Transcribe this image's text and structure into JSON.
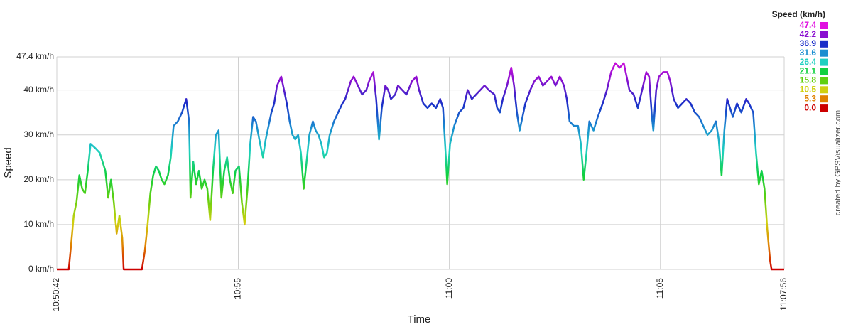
{
  "chart_data": {
    "type": "line",
    "x_label": "Time",
    "y_label": "Speed",
    "credit": "created by GPSVisualizer.com",
    "xlim": [
      "10:50:42",
      "11:07:56"
    ],
    "xticks": [
      "10:50:42",
      {
        "value": "10:55:00",
        "label": "10:55"
      },
      {
        "value": "11:00:00",
        "label": "11:00"
      },
      {
        "value": "11:05:00",
        "label": "11:05"
      },
      "11:07:56"
    ],
    "ylim": [
      0,
      47.4
    ],
    "yticks": [
      {
        "value": 0,
        "label": "0 km/h"
      },
      {
        "value": 10,
        "label": "10 km/h"
      },
      {
        "value": 20,
        "label": "20 km/h"
      },
      {
        "value": 30,
        "label": "30 km/h"
      },
      {
        "value": 40,
        "label": "40 km/h"
      },
      {
        "value": 47.4,
        "label": "47.4 km/h"
      }
    ],
    "grid": true,
    "legend": {
      "title": "Speed (km/h)",
      "items": [
        {
          "value": 47.4,
          "color": "#e010e0"
        },
        {
          "value": 42.2,
          "color": "#8a10d0"
        },
        {
          "value": 36.9,
          "color": "#1a2ec8"
        },
        {
          "value": 31.6,
          "color": "#1a8ed0"
        },
        {
          "value": 26.4,
          "color": "#1ed0c0"
        },
        {
          "value": 21.1,
          "color": "#10d040"
        },
        {
          "value": 15.8,
          "color": "#60d010"
        },
        {
          "value": 10.5,
          "color": "#d0d010"
        },
        {
          "value": 5.3,
          "color": "#e08000"
        },
        {
          "value": 0,
          "label": "0.0",
          "color": "#cc0000"
        }
      ]
    },
    "x": [
      "10:50:42",
      "10:50:59",
      "10:51:02",
      "10:51:06",
      "10:51:10",
      "10:51:14",
      "10:51:18",
      "10:51:22",
      "10:51:26",
      "10:51:30",
      "10:51:37",
      "10:51:43",
      "10:51:47",
      "10:51:51",
      "10:51:55",
      "10:51:59",
      "10:52:03",
      "10:52:07",
      "10:52:11",
      "10:52:15",
      "10:52:17",
      "10:52:43",
      "10:52:47",
      "10:52:51",
      "10:52:55",
      "10:52:59",
      "10:53:03",
      "10:53:07",
      "10:53:11",
      "10:53:15",
      "10:53:20",
      "10:53:24",
      "10:53:28",
      "10:53:34",
      "10:53:40",
      "10:53:46",
      "10:53:50",
      "10:53:52",
      "10:53:56",
      "10:54:00",
      "10:54:04",
      "10:54:08",
      "10:54:12",
      "10:54:16",
      "10:54:20",
      "10:54:24",
      "10:54:28",
      "10:54:32",
      "10:54:36",
      "10:54:40",
      "10:54:44",
      "10:54:48",
      "10:54:52",
      "10:54:56",
      "10:55:01",
      "10:55:05",
      "10:55:09",
      "10:55:13",
      "10:55:17",
      "10:55:21",
      "10:55:25",
      "10:55:31",
      "10:55:35",
      "10:55:39",
      "10:55:43",
      "10:55:47",
      "10:55:51",
      "10:55:55",
      "10:56:01",
      "10:56:05",
      "10:56:09",
      "10:56:13",
      "10:56:17",
      "10:56:21",
      "10:56:25",
      "10:56:29",
      "10:56:33",
      "10:56:37",
      "10:56:41",
      "10:56:46",
      "10:56:50",
      "10:56:54",
      "10:56:58",
      "10:57:02",
      "10:57:06",
      "10:57:10",
      "10:57:16",
      "10:57:22",
      "10:57:28",
      "10:57:32",
      "10:57:36",
      "10:57:40",
      "10:57:44",
      "10:57:50",
      "10:57:56",
      "10:58:02",
      "10:58:06",
      "10:58:12",
      "10:58:16",
      "10:58:20",
      "10:58:24",
      "10:58:29",
      "10:58:33",
      "10:58:37",
      "10:58:43",
      "10:58:47",
      "10:58:53",
      "10:58:59",
      "10:59:07",
      "10:59:13",
      "10:59:17",
      "10:59:23",
      "10:59:29",
      "10:59:35",
      "10:59:41",
      "10:59:47",
      "10:59:51",
      "10:59:55",
      "10:59:57",
      "11:00:01",
      "11:00:07",
      "11:00:14",
      "11:00:20",
      "11:00:26",
      "11:00:32",
      "11:00:38",
      "11:00:44",
      "11:00:50",
      "11:00:56",
      "11:01:04",
      "11:01:08",
      "11:01:12",
      "11:01:16",
      "11:01:22",
      "11:01:28",
      "11:01:32",
      "11:01:36",
      "11:01:40",
      "11:01:44",
      "11:01:48",
      "11:01:55",
      "11:02:01",
      "11:02:07",
      "11:02:13",
      "11:02:19",
      "11:02:25",
      "11:02:31",
      "11:02:37",
      "11:02:43",
      "11:02:47",
      "11:02:51",
      "11:02:57",
      "11:03:03",
      "11:03:07",
      "11:03:11",
      "11:03:15",
      "11:03:19",
      "11:03:25",
      "11:03:31",
      "11:03:38",
      "11:03:44",
      "11:03:50",
      "11:03:56",
      "11:04:02",
      "11:04:08",
      "11:04:12",
      "11:04:16",
      "11:04:22",
      "11:04:28",
      "11:04:34",
      "11:04:40",
      "11:04:44",
      "11:04:48",
      "11:04:50",
      "11:04:54",
      "11:04:58",
      "11:05:04",
      "11:05:10",
      "11:05:14",
      "11:05:19",
      "11:05:25",
      "11:05:31",
      "11:05:37",
      "11:05:43",
      "11:05:49",
      "11:05:55",
      "11:06:01",
      "11:06:07",
      "11:06:13",
      "11:06:19",
      "11:06:23",
      "11:06:27",
      "11:06:31",
      "11:06:35",
      "11:06:39",
      "11:06:43",
      "11:06:49",
      "11:06:55",
      "11:07:02",
      "11:07:06",
      "11:07:12",
      "11:07:16",
      "11:07:20",
      "11:07:24",
      "11:07:28",
      "11:07:32",
      "11:07:36",
      "11:07:38",
      "11:07:56"
    ],
    "values": [
      0,
      0,
      5,
      12,
      15,
      21,
      18,
      17,
      22,
      28,
      27,
      26,
      24,
      22,
      16,
      20,
      15,
      8,
      12,
      7,
      0,
      0,
      4,
      10,
      17,
      21,
      23,
      22,
      20,
      19,
      21,
      25,
      32,
      33,
      35,
      38,
      33,
      16,
      24,
      19,
      22,
      18,
      20,
      18,
      11,
      22,
      30,
      31,
      16,
      22,
      25,
      20,
      17,
      22,
      23,
      15,
      10,
      18,
      28,
      34,
      33,
      28,
      25,
      29,
      32,
      35,
      37,
      41,
      43,
      40,
      37,
      33,
      30,
      29,
      30,
      26,
      18,
      24,
      30,
      33,
      31,
      30,
      28,
      25,
      26,
      30,
      33,
      35,
      37,
      38,
      40,
      42,
      43,
      41,
      39,
      40,
      42,
      44,
      38,
      29,
      36,
      41,
      40,
      38,
      39,
      41,
      40,
      39,
      42,
      43,
      40,
      37,
      36,
      37,
      36,
      38,
      36,
      25,
      19,
      28,
      32,
      35,
      36,
      40,
      38,
      39,
      40,
      41,
      40,
      39,
      36,
      35,
      38,
      41,
      45,
      41,
      35,
      31,
      34,
      37,
      40,
      42,
      43,
      41,
      42,
      43,
      41,
      43,
      41,
      38,
      33,
      32,
      32,
      28,
      20,
      26,
      33,
      31,
      34,
      37,
      40,
      44,
      46,
      45,
      46,
      43,
      40,
      39,
      36,
      40,
      44,
      43,
      34,
      31,
      40,
      43,
      44,
      44,
      42,
      38,
      36,
      37,
      38,
      37,
      35,
      34,
      32,
      30,
      31,
      33,
      29,
      21,
      31,
      38,
      36,
      34,
      37,
      35,
      38,
      37,
      35,
      26,
      19,
      22,
      18,
      9,
      2,
      0,
      0
    ]
  }
}
